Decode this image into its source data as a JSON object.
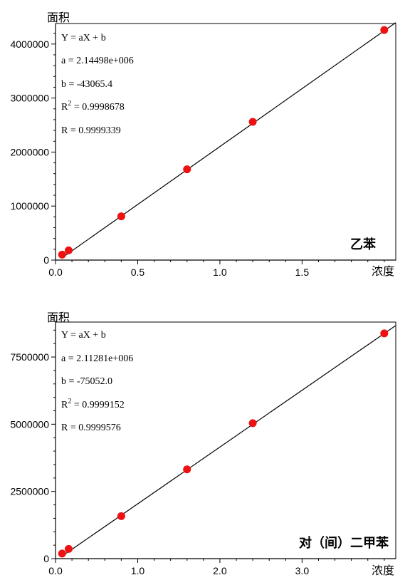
{
  "chart_data": [
    {
      "type": "scatter",
      "compound": "乙苯",
      "ylabel": "面积",
      "xlabel": "浓度",
      "x_ticks": [
        "0.0",
        "0.5",
        "1.0",
        "1.5"
      ],
      "x_tick_values": [
        0,
        0.5,
        1.0,
        1.5
      ],
      "y_ticks": [
        "0",
        "1000000",
        "2000000",
        "3000000",
        "4000000"
      ],
      "y_tick_values": [
        0,
        1000000,
        2000000,
        3000000,
        4000000
      ],
      "xlim": [
        0,
        2.07
      ],
      "ylim": [
        0,
        4380000
      ],
      "equation": {
        "form": "Y = aX + b",
        "a": "a = 2.14498e+006",
        "b": "b = -43065.4",
        "r2": "0.9998678",
        "r": "R = 0.9999339"
      },
      "fit": {
        "slope": 2144980,
        "intercept": -43065.4
      },
      "x": [
        0.04,
        0.08,
        0.4,
        0.8,
        1.2,
        2.0
      ],
      "y": [
        100000,
        180000,
        810000,
        1680000,
        2560000,
        4260000
      ]
    },
    {
      "type": "scatter",
      "compound": "对（间）二甲苯",
      "ylabel": "面积",
      "xlabel": "浓度",
      "x_ticks": [
        "0.0",
        "1.0",
        "2.0",
        "3.0"
      ],
      "x_tick_values": [
        0,
        1.0,
        2.0,
        3.0
      ],
      "y_ticks": [
        "0",
        "2500000",
        "5000000",
        "7500000"
      ],
      "y_tick_values": [
        0,
        2500000,
        5000000,
        7500000
      ],
      "xlim": [
        0,
        4.14
      ],
      "ylim": [
        0,
        8800000
      ],
      "equation": {
        "form": "Y = aX + b",
        "a": "a = 2.11281e+006",
        "b": "b = -75052.0",
        "r2": "0.9999152",
        "r": "R = 0.9999576"
      },
      "fit": {
        "slope": 2112810,
        "intercept": -75052.0
      },
      "x": [
        0.08,
        0.16,
        0.8,
        1.6,
        2.4,
        4.0
      ],
      "y": [
        190000,
        360000,
        1580000,
        3320000,
        5040000,
        8380000
      ]
    }
  ]
}
